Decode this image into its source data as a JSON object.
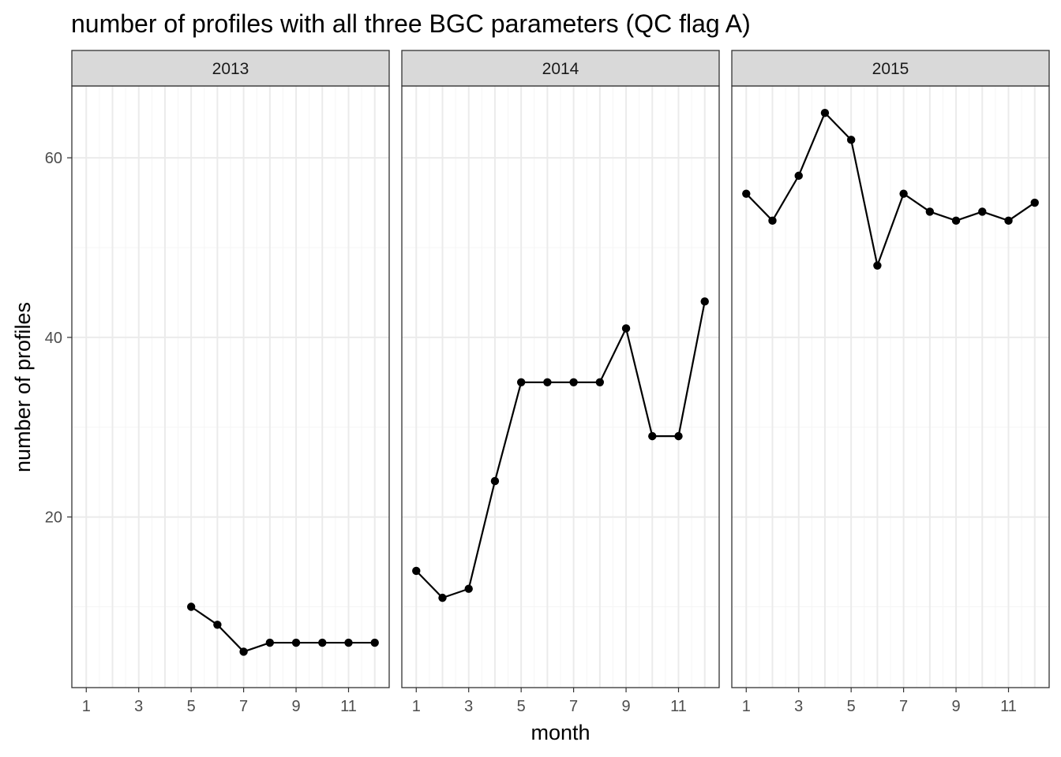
{
  "chart_data": {
    "type": "line",
    "title": "number of profiles with all three BGC parameters (QC flag A)",
    "xlabel": "month",
    "ylabel": "number of profiles",
    "xlim": [
      0.45,
      12.55
    ],
    "ylim": [
      1.0,
      68.0
    ],
    "x_ticks": [
      1,
      3,
      5,
      7,
      9,
      11
    ],
    "y_ticks": [
      20,
      40,
      60
    ],
    "grid": true,
    "legend": "none",
    "colors": {
      "line": "#000000",
      "point": "#000000",
      "grid_major": "#ebebeb",
      "grid_minor": "#f5f5f5",
      "strip_bg": "#d9d9d9",
      "panel_border": "#333333"
    },
    "panels": [
      {
        "label": "2013",
        "x": [
          5,
          6,
          7,
          8,
          9,
          10,
          11,
          12
        ],
        "y": [
          10,
          8,
          5,
          6,
          6,
          6,
          6,
          6
        ]
      },
      {
        "label": "2014",
        "x": [
          1,
          2,
          3,
          4,
          5,
          6,
          7,
          8,
          9,
          10,
          11,
          12
        ],
        "y": [
          14,
          11,
          12,
          24,
          35,
          35,
          35,
          35,
          41,
          29,
          29,
          44
        ]
      },
      {
        "label": "2015",
        "x": [
          1,
          2,
          3,
          4,
          5,
          6,
          7,
          8,
          9,
          10,
          11,
          12
        ],
        "y": [
          56,
          53,
          58,
          65,
          62,
          48,
          56,
          54,
          53,
          54,
          53,
          55
        ]
      }
    ]
  }
}
